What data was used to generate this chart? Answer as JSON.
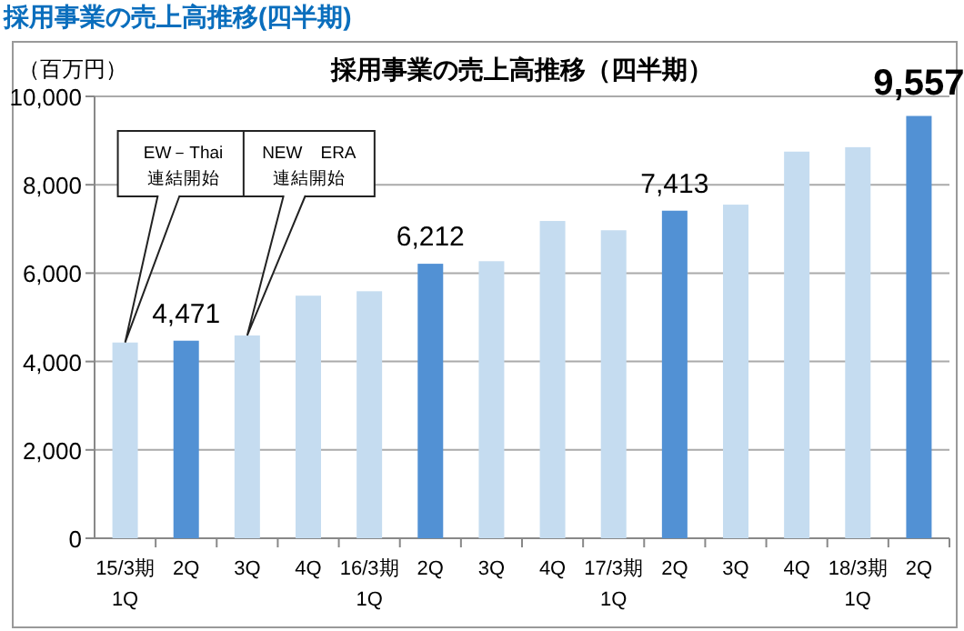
{
  "chart_data": {
    "type": "bar",
    "title": "採用事業の売上高推移(四半期)",
    "subtitle": "採用事業の売上高推移（四半期）",
    "ylabel": "（百万円）",
    "categories": [
      "15/3期\n1Q",
      "2Q",
      "3Q",
      "4Q",
      "16/3期\n1Q",
      "2Q",
      "3Q",
      "4Q",
      "17/3期\n1Q",
      "2Q",
      "3Q",
      "4Q",
      "18/3期\n1Q",
      "2Q"
    ],
    "values": [
      4430,
      4471,
      4590,
      5490,
      5590,
      6212,
      6270,
      7180,
      6970,
      7413,
      7550,
      8750,
      8850,
      9557
    ],
    "colors": [
      "#c5dcf0",
      "#5291d4",
      "#c5dcf0",
      "#c5dcf0",
      "#c5dcf0",
      "#5291d4",
      "#c5dcf0",
      "#c5dcf0",
      "#c5dcf0",
      "#5291d4",
      "#c5dcf0",
      "#c5dcf0",
      "#c5dcf0",
      "#5291d4"
    ],
    "value_labels": [
      null,
      "4,471",
      null,
      null,
      null,
      "6,212",
      null,
      null,
      null,
      "7,413",
      null,
      null,
      null,
      "9,557"
    ],
    "ylim": [
      0,
      10000
    ],
    "yticks": [
      {
        "value": 0,
        "label": "0"
      },
      {
        "value": 2000,
        "label": "2,000"
      },
      {
        "value": 4000,
        "label": "4,000"
      },
      {
        "value": 6000,
        "label": "6,000"
      },
      {
        "value": 8000,
        "label": "8,000"
      },
      {
        "value": 10000,
        "label": "10,000"
      }
    ],
    "grid": "y",
    "annotations": [
      {
        "text": "EW－Thai\n連結開始",
        "x": "15/3期\n1Q",
        "y": 4430
      },
      {
        "text": "NEW　ERA\n連結開始",
        "x": "3Q",
        "y": 4590
      }
    ]
  }
}
